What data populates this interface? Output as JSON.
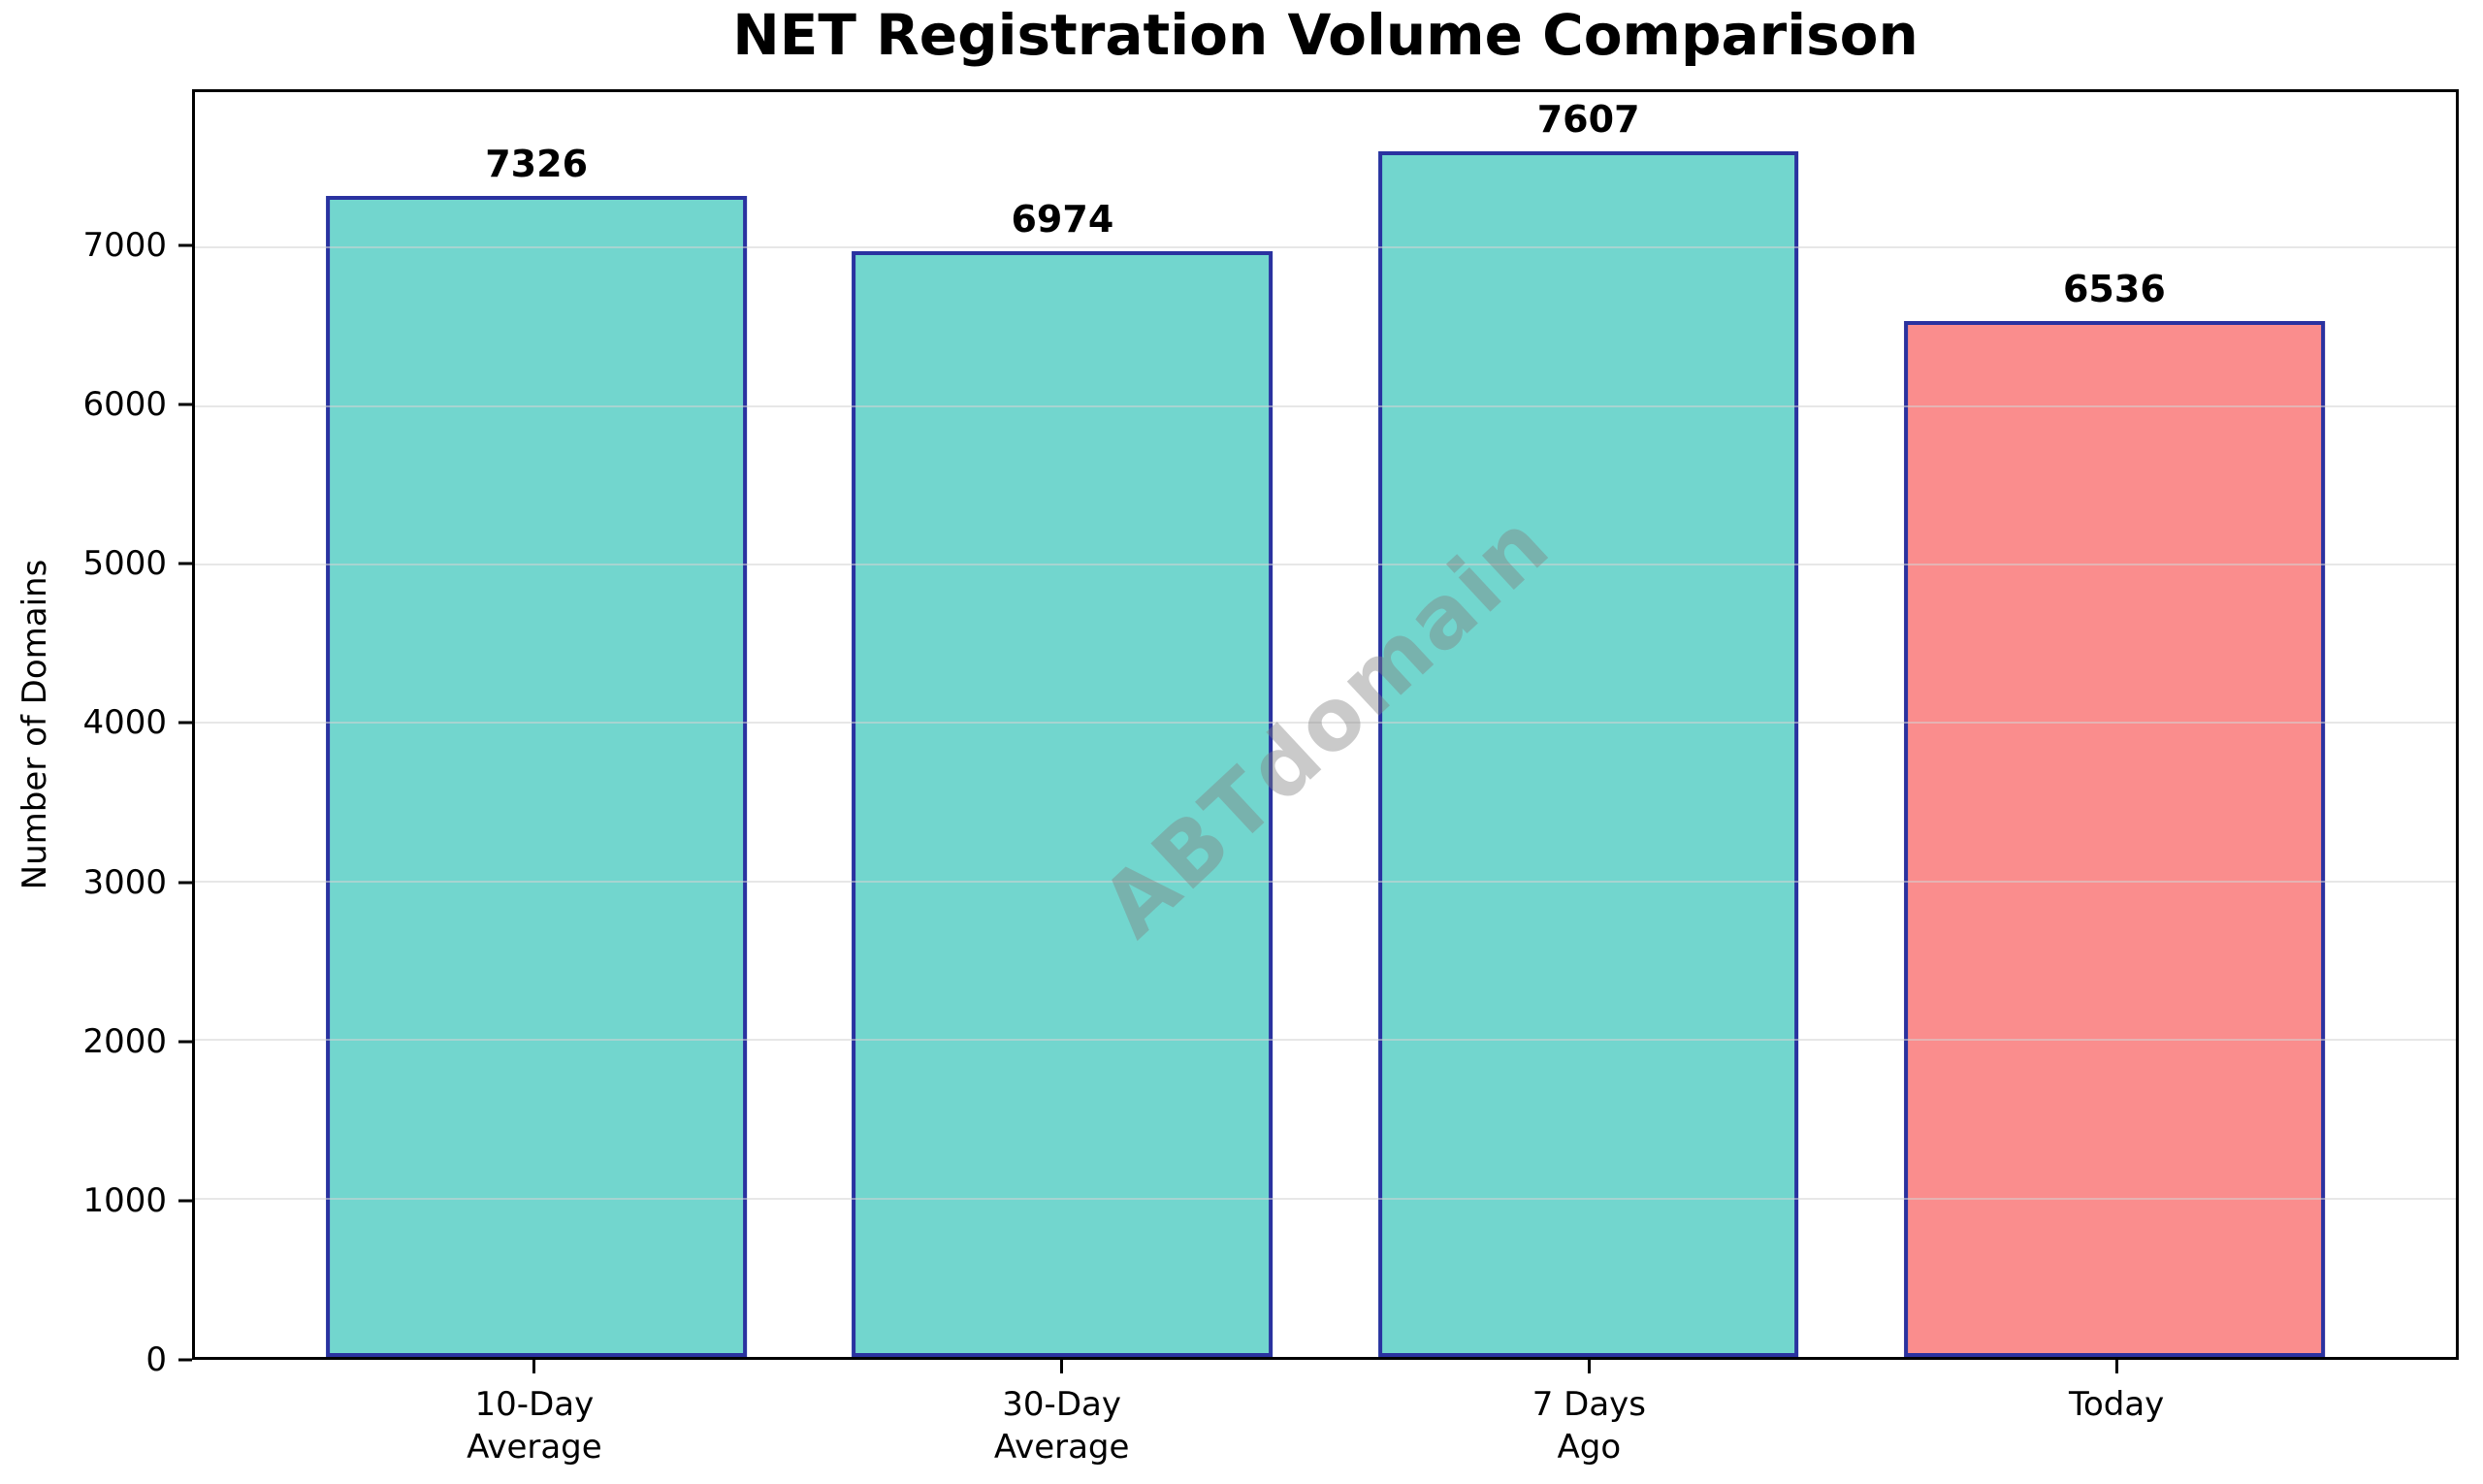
{
  "chart_data": {
    "type": "bar",
    "title": "NET Registration Volume Comparison",
    "ylabel": "Number of Domains",
    "xlabel": "",
    "categories": [
      "10-Day\nAverage",
      "30-Day\nAverage",
      "7 Days\nAgo",
      "Today"
    ],
    "values": [
      7326,
      6974,
      7607,
      6536
    ],
    "bar_labels": [
      "7326",
      "6974",
      "7607",
      "6536"
    ],
    "ylim": [
      0,
      7980
    ],
    "yticks": [
      0,
      1000,
      2000,
      3000,
      4000,
      5000,
      6000,
      7000
    ],
    "grid": true,
    "legend": false,
    "watermark": {
      "text": "ABTdomain",
      "rotation_deg": -43
    },
    "colors": {
      "bar_fill": [
        "#72D6CE",
        "#72D6CE",
        "#72D6CE",
        "#FA8D8D"
      ],
      "bar_edge": "#2A32A0",
      "gridline": "#D4D4D4",
      "watermark": "#808080",
      "spine": "#000000",
      "text": "#000000"
    }
  }
}
